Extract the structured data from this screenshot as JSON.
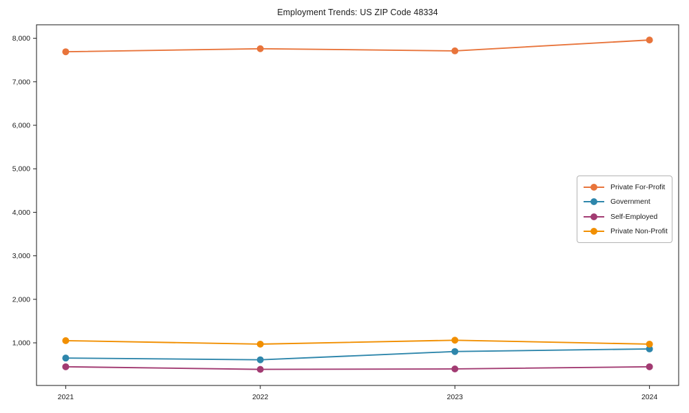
{
  "chart_data": {
    "type": "line",
    "title": "Employment Trends: US ZIP Code 48334",
    "categories": [
      2021,
      2022,
      2023,
      2024
    ],
    "series": [
      {
        "name": "Private For-Profit",
        "color": "#E8743B",
        "values": [
          7690,
          7760,
          7710,
          7960
        ]
      },
      {
        "name": "Government",
        "color": "#2E86AB",
        "values": [
          650,
          610,
          800,
          860
        ]
      },
      {
        "name": "Self-Employed",
        "color": "#A23B72",
        "values": [
          450,
          390,
          400,
          450
        ]
      },
      {
        "name": "Private Non-Profit",
        "color": "#F18F01",
        "values": [
          1050,
          970,
          1060,
          970
        ]
      }
    ],
    "xlabel": "",
    "ylabel": "",
    "xlim": [
      2020.85,
      2024.15
    ],
    "ylim": [
      20,
      8310
    ],
    "xticks": [
      2021,
      2022,
      2023,
      2024
    ],
    "xtick_labels": [
      "2021",
      "2022",
      "2023",
      "2024"
    ],
    "yticks": [
      1000,
      2000,
      3000,
      4000,
      5000,
      6000,
      7000,
      8000
    ],
    "ytick_labels": [
      "1,000",
      "2,000",
      "3,000",
      "4,000",
      "5,000",
      "6,000",
      "7,000",
      "8,000"
    ],
    "grid": false,
    "legend_position": "center right",
    "style": {
      "axis_color": "#1a1a1a",
      "tick_label_color": "#1a1a1a",
      "background": "#ffffff",
      "line_width": 1.9,
      "marker_radius": 5
    }
  }
}
